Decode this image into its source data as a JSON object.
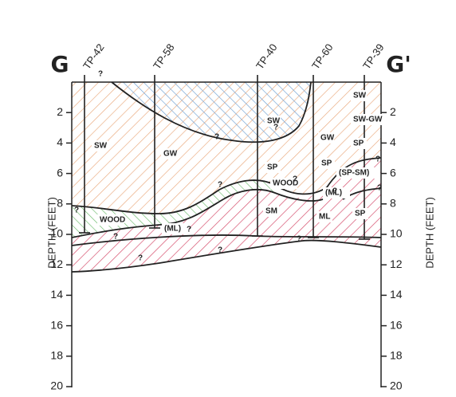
{
  "section": {
    "left": "G",
    "right": "G'"
  },
  "test_pits": [
    "TP-42",
    "TP-58",
    "TP-40",
    "TP-60",
    "TP-39"
  ],
  "axis": {
    "left_title": "DEPTH (FEET)",
    "right_title": "DEPTH (FEET)",
    "depth_labels": [
      "2",
      "4",
      "6",
      "8",
      "10",
      "12",
      "14",
      "16",
      "18",
      "20"
    ]
  },
  "soil_labels": [
    "SW",
    "GW",
    "SW",
    "GW",
    "SW",
    "SW-GW",
    "SP",
    "SP",
    "SP",
    "WOOD",
    "(SP-SM)",
    "(ML)",
    "SP",
    "SM",
    "ML",
    "WOOD",
    "(ML)"
  ],
  "unknown_markers": [
    "?",
    "?",
    "?",
    "?",
    "?",
    "?",
    "?",
    "?",
    "?",
    "?",
    "?",
    "?",
    "?",
    "?"
  ]
}
